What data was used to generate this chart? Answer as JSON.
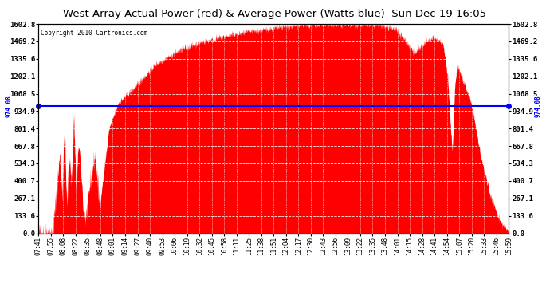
{
  "title": "West Array Actual Power (red) & Average Power (Watts blue)  Sun Dec 19 16:05",
  "copyright": "Copyright 2010 Cartronics.com",
  "average_power": 974.08,
  "ymax": 1602.8,
  "ymin": 0.0,
  "yticks": [
    0.0,
    133.6,
    267.1,
    400.7,
    534.3,
    667.8,
    801.4,
    934.9,
    1068.5,
    1202.1,
    1335.6,
    1469.2,
    1602.8
  ],
  "background_color": "#ffffff",
  "fill_color": "#ff0000",
  "avg_line_color": "#0000ff",
  "xtick_labels": [
    "07:41",
    "07:55",
    "08:08",
    "08:22",
    "08:35",
    "08:48",
    "09:01",
    "09:14",
    "09:27",
    "09:40",
    "09:53",
    "10:06",
    "10:19",
    "10:32",
    "10:45",
    "10:58",
    "11:11",
    "11:25",
    "11:38",
    "11:51",
    "12:04",
    "12:17",
    "12:30",
    "12:43",
    "12:56",
    "13:09",
    "13:22",
    "13:35",
    "13:48",
    "14:01",
    "14:15",
    "14:28",
    "14:41",
    "14:54",
    "15:07",
    "15:20",
    "15:33",
    "15:46",
    "15:59"
  ],
  "profile_x": [
    0.0,
    0.03,
    0.035,
    0.04,
    0.045,
    0.05,
    0.055,
    0.06,
    0.065,
    0.07,
    0.075,
    0.08,
    0.085,
    0.09,
    0.095,
    0.1,
    0.11,
    0.12,
    0.13,
    0.15,
    0.17,
    0.2,
    0.25,
    0.3,
    0.35,
    0.4,
    0.44,
    0.48,
    0.52,
    0.55,
    0.58,
    0.6,
    0.62,
    0.64,
    0.66,
    0.68,
    0.7,
    0.72,
    0.74,
    0.76,
    0.78,
    0.8,
    0.82,
    0.84,
    0.86,
    0.87,
    0.875,
    0.88,
    0.885,
    0.89,
    0.9,
    0.92,
    0.94,
    0.96,
    0.98,
    1.0
  ],
  "profile_y": [
    0,
    0,
    200,
    400,
    600,
    300,
    800,
    200,
    600,
    400,
    900,
    300,
    700,
    500,
    200,
    100,
    400,
    600,
    200,
    800,
    1000,
    1100,
    1300,
    1400,
    1470,
    1510,
    1540,
    1560,
    1580,
    1590,
    1595,
    1598,
    1600,
    1598,
    1600,
    1602,
    1598,
    1595,
    1580,
    1560,
    1480,
    1380,
    1450,
    1500,
    1450,
    1200,
    900,
    600,
    1100,
    1300,
    1200,
    1000,
    600,
    300,
    100,
    0
  ]
}
